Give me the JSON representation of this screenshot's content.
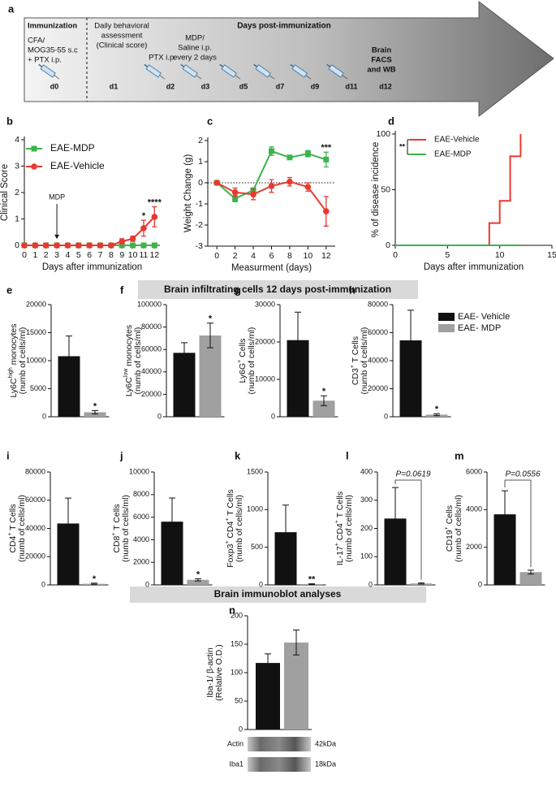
{
  "timeline": {
    "label": "a",
    "header": "Days post-immunization",
    "immunization": "Immunization",
    "notes": [
      [
        "CFA/",
        "MOG35-55 s.c",
        "+ PTX i.p."
      ],
      [
        "Daily behavioral",
        "assessment",
        "(Clinical score)"
      ],
      [
        "PTX i.p."
      ],
      [
        "MDP/",
        "Saline i.p.",
        "every 2 days"
      ],
      [
        "Brain",
        "FACS",
        "and WB"
      ]
    ],
    "days": [
      "d0",
      "d1",
      "d2",
      "d3",
      "d5",
      "d7",
      "d9",
      "d11",
      "d12"
    ]
  },
  "sections": [
    "Brain infiltrating cells 12 days post-immunization",
    "Brain immunoblot analyses"
  ],
  "bar_legend": {
    "series": [
      {
        "name": "EAE- Vehicle",
        "color": "#111111"
      },
      {
        "name": "EAE- MDP",
        "color": "#a0a0a0"
      }
    ]
  },
  "blot": {
    "rows": [
      "Actin",
      "Iba1"
    ],
    "sizes": [
      "42kDa",
      "18kDa"
    ]
  },
  "chart_data": [
    {
      "type": "line",
      "label": "b",
      "xlabel": "Days after immunization",
      "ylabel": "Clinical Score",
      "x": [
        0,
        1,
        2,
        3,
        4,
        5,
        6,
        7,
        8,
        9,
        10,
        11,
        12
      ],
      "xlim": [
        0,
        12.5
      ],
      "xticks": [
        0,
        1,
        2,
        3,
        4,
        5,
        6,
        7,
        8,
        9,
        10,
        11,
        12
      ],
      "ylim": [
        0,
        4
      ],
      "yticks": [
        0,
        1,
        2,
        3,
        4
      ],
      "marker_arrow": {
        "label": "MDP",
        "x": 3
      },
      "series": [
        {
          "name": "EAE-MDP",
          "color": "#3cb44b",
          "marker": "square",
          "values": [
            0,
            0,
            0,
            0,
            0,
            0,
            0,
            0,
            0,
            0,
            0,
            0,
            0
          ],
          "errors": [
            null,
            null,
            null,
            null,
            null,
            null,
            null,
            null,
            null,
            null,
            null,
            null,
            null
          ],
          "notes": [
            null,
            null,
            null,
            null,
            null,
            null,
            null,
            null,
            null,
            null,
            null,
            null,
            null
          ]
        },
        {
          "name": "EAE-Vehicle",
          "color": "#e8392f",
          "marker": "circle",
          "values": [
            0,
            0,
            0,
            0,
            0,
            0,
            0,
            0,
            0,
            0.15,
            0.25,
            0.65,
            1.08
          ],
          "errors": [
            null,
            null,
            null,
            null,
            null,
            null,
            null,
            null,
            null,
            0.1,
            0.1,
            0.3,
            0.38
          ],
          "notes": [
            null,
            null,
            null,
            null,
            null,
            null,
            null,
            null,
            null,
            null,
            null,
            "*",
            "****"
          ]
        }
      ]
    },
    {
      "type": "line",
      "label": "c",
      "xlabel": "Measurment (days)",
      "ylabel": "Weight Change (g)",
      "x": [
        0,
        2,
        4,
        6,
        8,
        10,
        12
      ],
      "xlim": [
        -1,
        13
      ],
      "xticks": [
        0,
        2,
        4,
        6,
        8,
        10,
        12
      ],
      "ylim": [
        -3,
        2
      ],
      "yticks": [
        -3,
        -2,
        -1,
        0,
        1,
        2
      ],
      "zero_line": true,
      "series": [
        {
          "color": "#3cb44b",
          "marker": "square",
          "values": [
            0,
            -0.75,
            -0.35,
            1.5,
            1.2,
            1.38,
            1.1
          ],
          "errors": [
            0.05,
            0.15,
            0.1,
            0.2,
            0.1,
            0.15,
            0.35
          ],
          "notes": [
            null,
            null,
            null,
            null,
            null,
            null,
            "***"
          ]
        },
        {
          "color": "#e8392f",
          "marker": "circle",
          "values": [
            0,
            -0.45,
            -0.55,
            -0.15,
            0.05,
            -0.2,
            -1.35
          ],
          "errors": [
            0.05,
            0.2,
            0.25,
            0.3,
            0.2,
            0.2,
            0.7
          ],
          "notes": [
            null,
            null,
            null,
            null,
            null,
            null,
            null
          ]
        }
      ]
    },
    {
      "type": "step",
      "label": "d",
      "xlabel": "Days after immunization",
      "ylabel": "% of disease incidence",
      "xlim": [
        0,
        15
      ],
      "xticks": [
        0,
        5,
        10,
        15
      ],
      "ylim": [
        0,
        100
      ],
      "yticks": [
        0,
        50,
        100
      ],
      "legend_note": "**",
      "series": [
        {
          "name": "EAE-Vehicle",
          "color": "#e8392f",
          "x": [
            0,
            9,
            10,
            11,
            12
          ],
          "values": [
            0,
            20,
            40,
            80,
            100
          ]
        },
        {
          "name": "EAE-MDP",
          "color": "#3cb44b",
          "x": [
            0,
            12
          ],
          "values": [
            0,
            0
          ]
        }
      ]
    },
    {
      "type": "bar",
      "label": "e",
      "ylim": [
        0,
        20000
      ],
      "yticks": [
        0,
        5000,
        10000,
        15000,
        20000
      ],
      "values": [
        10800,
        800
      ],
      "errors": [
        3600,
        300
      ],
      "notes": [
        null,
        "*"
      ],
      "ylabel": [
        [
          "Ly6C",
          {
            "sup": "high"
          },
          " monocytes"
        ],
        [
          "(numb of cells/ml)"
        ]
      ]
    },
    {
      "type": "bar",
      "label": "f",
      "ylim": [
        0,
        100000
      ],
      "yticks": [
        0,
        20000,
        40000,
        60000,
        80000,
        100000
      ],
      "values": [
        57000,
        72500
      ],
      "errors": [
        9000,
        11000
      ],
      "notes": [
        null,
        "*"
      ],
      "ylabel": [
        [
          "Ly6C",
          {
            "sup": "low"
          },
          " monocytes"
        ],
        [
          "(numb of cells/ml)"
        ]
      ]
    },
    {
      "type": "bar",
      "label": "g",
      "ylim": [
        0,
        30000
      ],
      "yticks": [
        0,
        10000,
        20000,
        30000
      ],
      "values": [
        20500,
        4300
      ],
      "errors": [
        7500,
        1300
      ],
      "notes": [
        null,
        "*"
      ],
      "ylabel": [
        [
          "Ly6G",
          {
            "sup": "+"
          },
          " Cells"
        ],
        [
          "(numb of cells/ml)"
        ]
      ]
    },
    {
      "type": "bar",
      "label": "h",
      "ylim": [
        0,
        80000
      ],
      "yticks": [
        0,
        20000,
        40000,
        60000,
        80000
      ],
      "values": [
        54500,
        1500
      ],
      "errors": [
        21500,
        700
      ],
      "notes": [
        null,
        "*"
      ],
      "ylabel": [
        [
          "CD3",
          {
            "sup": "+"
          },
          " T Cells"
        ],
        [
          "(numb of cells/ml)"
        ]
      ]
    },
    {
      "type": "bar",
      "label": "i",
      "ylim": [
        0,
        80000
      ],
      "yticks": [
        0,
        20000,
        40000,
        60000,
        80000
      ],
      "values": [
        43500,
        800
      ],
      "errors": [
        18000,
        400
      ],
      "notes": [
        null,
        "*"
      ],
      "ylabel": [
        [
          "CD4",
          {
            "sup": "+"
          },
          " T Cells"
        ],
        [
          "(numb of cells/ml)"
        ]
      ]
    },
    {
      "type": "bar",
      "label": "j",
      "ylim": [
        0,
        10000
      ],
      "yticks": [
        0,
        2000,
        4000,
        6000,
        8000,
        10000
      ],
      "values": [
        5600,
        450
      ],
      "errors": [
        2100,
        100
      ],
      "notes": [
        null,
        "*"
      ],
      "ylabel": [
        [
          "CD8",
          {
            "sup": "+"
          },
          " T Cells"
        ],
        [
          "(numb of cells/ml)"
        ]
      ]
    },
    {
      "type": "bar",
      "label": "k",
      "ylim": [
        0,
        1500
      ],
      "yticks": [
        0,
        500,
        1000,
        1500
      ],
      "values": [
        700,
        10
      ],
      "errors": [
        360,
        5
      ],
      "notes": [
        null,
        "**"
      ],
      "ylabel": [
        [
          "Foxp3",
          {
            "sup": "+"
          },
          " CD4",
          {
            "sup": "+"
          },
          " T Cells"
        ],
        [
          "(numb of cells/ml)"
        ]
      ]
    },
    {
      "type": "bar",
      "label": "l",
      "ylim": [
        0,
        400
      ],
      "yticks": [
        0,
        100,
        200,
        300,
        400
      ],
      "values": [
        235,
        5
      ],
      "errors": [
        110,
        2
      ],
      "notes": [
        null,
        null
      ],
      "p_label": "P=0.0619",
      "ylabel": [
        [
          "IL-17",
          {
            "sup": "+"
          },
          " CD4",
          {
            "sup": "+"
          },
          " T Cells"
        ],
        [
          "(numb of cells/ml)"
        ]
      ]
    },
    {
      "type": "bar",
      "label": "m",
      "ylim": [
        0,
        6000
      ],
      "yticks": [
        0,
        2000,
        4000,
        6000
      ],
      "values": [
        3750,
        680
      ],
      "errors": [
        1250,
        100
      ],
      "notes": [
        null,
        null
      ],
      "p_label": "P=0.0556",
      "ylabel": [
        [
          "CD19",
          {
            "sup": "+"
          },
          " Cells"
        ],
        [
          "(numb of cells/ml)"
        ]
      ]
    },
    {
      "type": "bar",
      "label": "n",
      "ylim": [
        0,
        200
      ],
      "yticks": [
        0,
        50,
        100,
        150,
        200
      ],
      "values": [
        117,
        153
      ],
      "errors": [
        16,
        22
      ],
      "notes": [
        null,
        null
      ],
      "ylabel": [
        [
          "Iba-1/ β-actin"
        ],
        [
          "(Relative O.D.)"
        ]
      ]
    }
  ]
}
